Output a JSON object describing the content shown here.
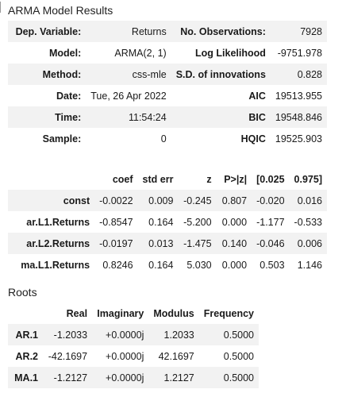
{
  "results": {
    "caption": "ARMA Model Results",
    "summary_rows": [
      {
        "label1": "Dep. Variable:",
        "value1": "Returns",
        "label2": "No. Observations:",
        "value2": "7928"
      },
      {
        "label1": "Model:",
        "value1": "ARMA(2, 1)",
        "label2": "Log Likelihood",
        "value2": "-9751.978"
      },
      {
        "label1": "Method:",
        "value1": "css-mle",
        "label2": "S.D. of innovations",
        "value2": "0.828"
      },
      {
        "label1": "Date:",
        "value1": "Tue, 26 Apr 2022",
        "label2": "AIC",
        "value2": "19513.955"
      },
      {
        "label1": "Time:",
        "value1": "11:54:24",
        "label2": "BIC",
        "value2": "19548.846"
      },
      {
        "label1": "Sample:",
        "value1": "0",
        "label2": "HQIC",
        "value2": "19525.903"
      }
    ],
    "coef_headers": [
      "",
      "coef",
      "std err",
      "z",
      "P>|z|",
      "[0.025",
      "0.975]"
    ],
    "coef_rows": [
      [
        "const",
        "-0.0022",
        "0.009",
        "-0.245",
        "0.807",
        "-0.020",
        "0.016"
      ],
      [
        "ar.L1.Returns",
        "-0.8547",
        "0.164",
        "-5.200",
        "0.000",
        "-1.177",
        "-0.533"
      ],
      [
        "ar.L2.Returns",
        "-0.0197",
        "0.013",
        "-1.475",
        "0.140",
        "-0.046",
        "0.006"
      ],
      [
        "ma.L1.Returns",
        "0.8246",
        "0.164",
        "5.030",
        "0.000",
        "0.503",
        "1.146"
      ]
    ]
  },
  "roots": {
    "caption": "Roots",
    "headers": [
      "",
      "Real",
      "Imaginary",
      "Modulus",
      "Frequency"
    ],
    "rows": [
      [
        "AR.1",
        "-1.2033",
        "+0.0000j",
        "1.2033",
        "0.5000"
      ],
      [
        "AR.2",
        "-42.1697",
        "+0.0000j",
        "42.1697",
        "0.5000"
      ],
      [
        "MA.1",
        "-1.2127",
        "+0.0000j",
        "1.2127",
        "0.5000"
      ]
    ]
  }
}
